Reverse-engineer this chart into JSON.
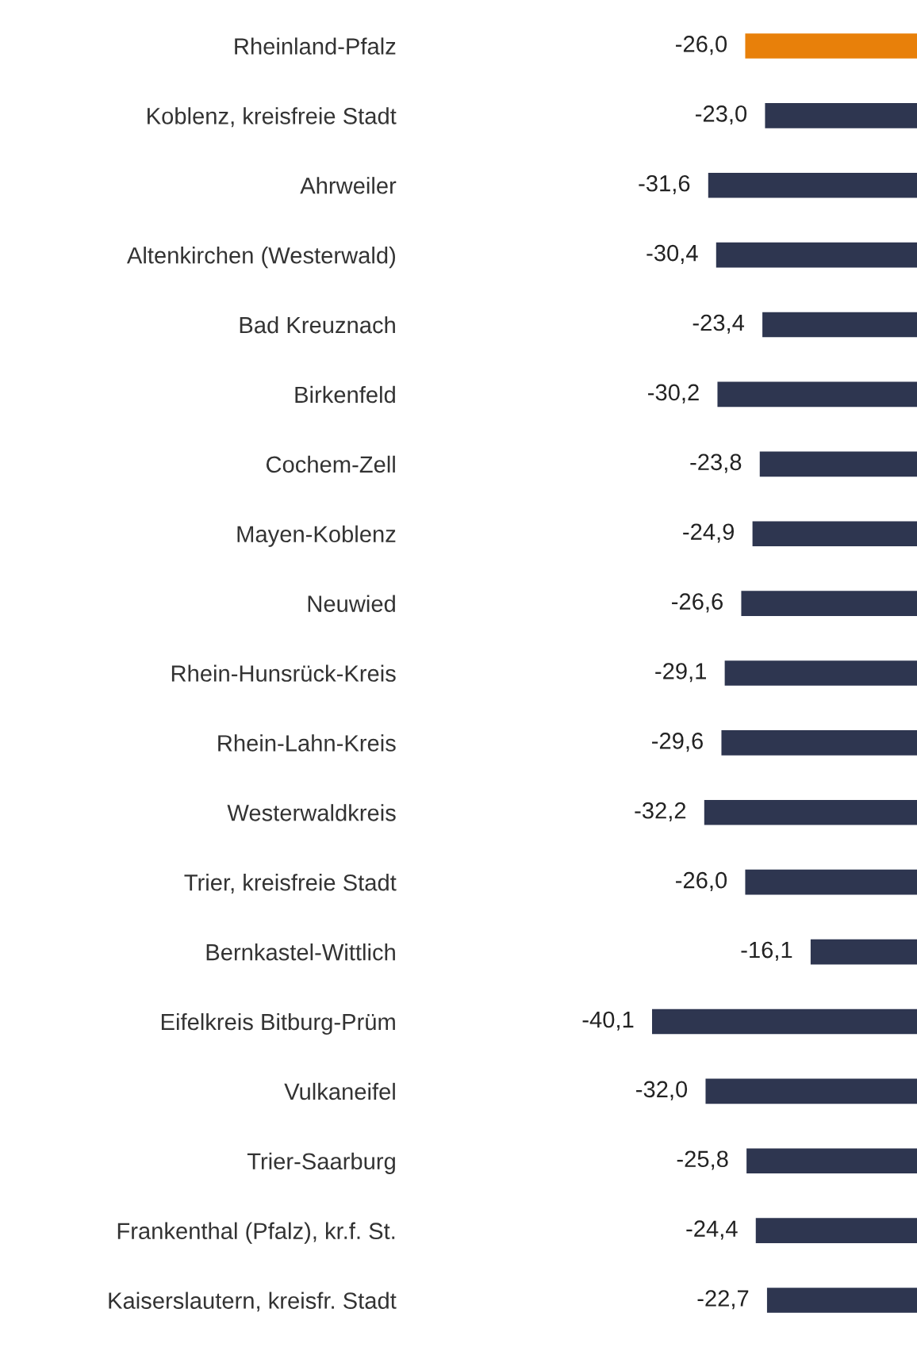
{
  "chart_data": {
    "type": "bar",
    "orientation": "horizontal",
    "categories": [
      "Rheinland-Pfalz",
      "Koblenz, kreisfreie Stadt",
      "Ahrweiler",
      "Altenkirchen (Westerwald)",
      "Bad Kreuznach",
      "Birkenfeld",
      "Cochem-Zell",
      "Mayen-Koblenz",
      "Neuwied",
      "Rhein-Hunsrück-Kreis",
      "Rhein-Lahn-Kreis",
      "Westerwaldkreis",
      "Trier, kreisfreie Stadt",
      "Bernkastel-Wittlich",
      "Eifelkreis Bitburg-Prüm",
      "Vulkaneifel",
      "Trier-Saarburg",
      "Frankenthal (Pfalz), kr.f. St.",
      "Kaiserslautern, kreisfr. Stadt"
    ],
    "values": [
      -26.0,
      -23.0,
      -31.6,
      -30.4,
      -23.4,
      -30.2,
      -23.8,
      -24.9,
      -26.6,
      -29.1,
      -29.6,
      -32.2,
      -26.0,
      -16.1,
      -40.1,
      -32.0,
      -25.8,
      -24.4,
      -22.7
    ],
    "value_labels": [
      "-26,0",
      "-23,0",
      "-31,6",
      "-30,4",
      "-23,4",
      "-30,2",
      "-23,8",
      "-24,9",
      "-26,6",
      "-29,1",
      "-29,6",
      "-32,2",
      "-26,0",
      "-16,1",
      "-40,1",
      "-32,0",
      "-25,8",
      "-24,4",
      "-22,7"
    ],
    "colors": [
      "#e8800a",
      "#2e3650",
      "#2e3650",
      "#2e3650",
      "#2e3650",
      "#2e3650",
      "#2e3650",
      "#2e3650",
      "#2e3650",
      "#2e3650",
      "#2e3650",
      "#2e3650",
      "#2e3650",
      "#2e3650",
      "#2e3650",
      "#2e3650",
      "#2e3650",
      "#2e3650",
      "#2e3650"
    ],
    "grid": false,
    "legend": false
  }
}
